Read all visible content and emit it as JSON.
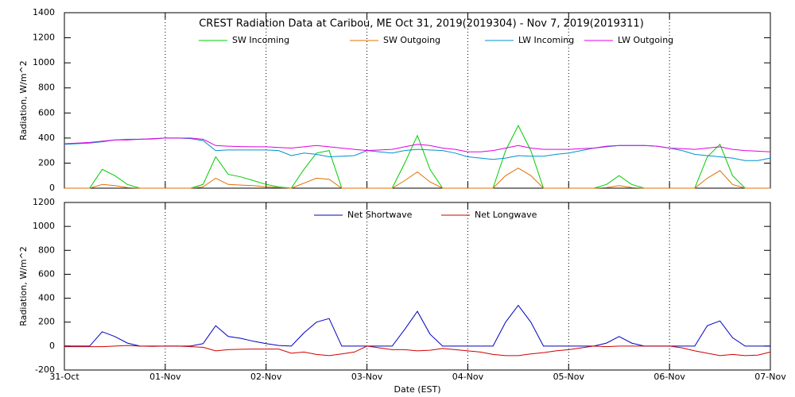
{
  "chart_data": [
    {
      "type": "line",
      "title": "CREST Radiation Data at Caribou, ME   Oct 31, 2019(2019304) - Nov  7, 2019(2019311)",
      "ylabel": "Radiation, W/m^2",
      "x": [
        0,
        0.125,
        0.25,
        0.375,
        0.5,
        0.625,
        0.75,
        0.875,
        1,
        1.125,
        1.25,
        1.375,
        1.5,
        1.625,
        1.75,
        1.875,
        2,
        2.125,
        2.25,
        2.375,
        2.5,
        2.625,
        2.75,
        2.875,
        3,
        3.125,
        3.25,
        3.375,
        3.5,
        3.625,
        3.75,
        3.875,
        4,
        4.125,
        4.25,
        4.375,
        4.5,
        4.625,
        4.75,
        4.875,
        5,
        5.125,
        5.25,
        5.375,
        5.5,
        5.625,
        5.75,
        5.875,
        6,
        6.125,
        6.25,
        6.375,
        6.5,
        6.625,
        6.75,
        6.875,
        7
      ],
      "xlim": [
        0,
        7
      ],
      "xticks": [
        0,
        1,
        2,
        3,
        4,
        5,
        6,
        7
      ],
      "ylim": [
        0,
        1400
      ],
      "yticks": [
        0,
        200,
        400,
        600,
        800,
        1000,
        1200,
        1400
      ],
      "grid": "x",
      "series": [
        {
          "name": "SW Incoming",
          "color": "#00cc00",
          "values": [
            0,
            0,
            0,
            150,
            100,
            30,
            0,
            0,
            0,
            0,
            0,
            30,
            250,
            110,
            90,
            60,
            30,
            10,
            0,
            150,
            280,
            300,
            0,
            0,
            0,
            0,
            0,
            200,
            420,
            150,
            0,
            0,
            0,
            0,
            0,
            300,
            500,
            300,
            0,
            0,
            0,
            0,
            0,
            30,
            100,
            30,
            0,
            0,
            0,
            0,
            0,
            250,
            350,
            100,
            0,
            0,
            0
          ]
        },
        {
          "name": "SW Outgoing",
          "color": "#e07000",
          "values": [
            0,
            0,
            0,
            30,
            20,
            5,
            0,
            0,
            0,
            0,
            0,
            10,
            80,
            30,
            25,
            20,
            10,
            5,
            0,
            40,
            80,
            70,
            0,
            0,
            0,
            0,
            0,
            60,
            130,
            50,
            0,
            0,
            0,
            0,
            0,
            100,
            160,
            100,
            0,
            0,
            0,
            0,
            0,
            5,
            20,
            5,
            0,
            0,
            0,
            0,
            0,
            80,
            140,
            30,
            0,
            0,
            0
          ]
        },
        {
          "name": "LW Incoming",
          "color": "#0090d0",
          "values": [
            350,
            355,
            360,
            370,
            385,
            390,
            390,
            392,
            400,
            400,
            395,
            380,
            300,
            305,
            305,
            305,
            305,
            300,
            260,
            280,
            270,
            250,
            255,
            260,
            300,
            290,
            280,
            300,
            310,
            305,
            300,
            280,
            250,
            240,
            230,
            240,
            260,
            255,
            255,
            270,
            280,
            300,
            320,
            330,
            340,
            340,
            340,
            335,
            320,
            300,
            270,
            260,
            250,
            240,
            220,
            220,
            240
          ]
        },
        {
          "name": "LW Outgoing",
          "color": "#e000e0",
          "values": [
            355,
            360,
            365,
            375,
            385,
            385,
            390,
            395,
            400,
            400,
            400,
            390,
            340,
            335,
            332,
            330,
            330,
            325,
            320,
            330,
            340,
            330,
            320,
            310,
            300,
            305,
            310,
            330,
            350,
            340,
            320,
            310,
            290,
            290,
            300,
            320,
            340,
            320,
            310,
            310,
            310,
            315,
            320,
            335,
            340,
            340,
            340,
            335,
            320,
            315,
            310,
            320,
            330,
            310,
            300,
            295,
            290
          ]
        }
      ]
    },
    {
      "type": "line",
      "ylabel": "Radiation, W/m^2",
      "xlabel": "Date (EST)",
      "x": [
        0,
        0.125,
        0.25,
        0.375,
        0.5,
        0.625,
        0.75,
        0.875,
        1,
        1.125,
        1.25,
        1.375,
        1.5,
        1.625,
        1.75,
        1.875,
        2,
        2.125,
        2.25,
        2.375,
        2.5,
        2.625,
        2.75,
        2.875,
        3,
        3.125,
        3.25,
        3.375,
        3.5,
        3.625,
        3.75,
        3.875,
        4,
        4.125,
        4.25,
        4.375,
        4.5,
        4.625,
        4.75,
        4.875,
        5,
        5.125,
        5.25,
        5.375,
        5.5,
        5.625,
        5.75,
        5.875,
        6,
        6.125,
        6.25,
        6.375,
        6.5,
        6.625,
        6.75,
        6.875,
        7
      ],
      "xlim": [
        0,
        7
      ],
      "xticks": [
        {
          "value": 0,
          "label": "31-Oct"
        },
        {
          "value": 1,
          "label": "01-Nov"
        },
        {
          "value": 2,
          "label": "02-Nov"
        },
        {
          "value": 3,
          "label": "03-Nov"
        },
        {
          "value": 4,
          "label": "04-Nov"
        },
        {
          "value": 5,
          "label": "05-Nov"
        },
        {
          "value": 6,
          "label": "06-Nov"
        },
        {
          "value": 7,
          "label": "07-Nov"
        }
      ],
      "ylim": [
        -200,
        1200
      ],
      "yticks": [
        -200,
        0,
        200,
        400,
        600,
        800,
        1000,
        1200
      ],
      "grid": "x",
      "series": [
        {
          "name": "Net Shortwave",
          "color": "#0000c0",
          "values": [
            0,
            0,
            0,
            120,
            80,
            25,
            0,
            0,
            0,
            0,
            0,
            20,
            170,
            80,
            65,
            40,
            20,
            5,
            0,
            110,
            200,
            230,
            0,
            0,
            0,
            0,
            0,
            140,
            290,
            100,
            0,
            0,
            0,
            0,
            0,
            200,
            340,
            200,
            0,
            0,
            0,
            0,
            0,
            25,
            80,
            25,
            0,
            0,
            0,
            0,
            0,
            170,
            210,
            70,
            0,
            0,
            0
          ]
        },
        {
          "name": "Net Longwave",
          "color": "#d00000",
          "values": [
            -5,
            -5,
            -5,
            -5,
            0,
            5,
            0,
            -3,
            0,
            0,
            -5,
            -10,
            -40,
            -30,
            -27,
            -25,
            -25,
            -25,
            -60,
            -50,
            -70,
            -80,
            -65,
            -50,
            0,
            -15,
            -30,
            -30,
            -40,
            -35,
            -20,
            -30,
            -40,
            -50,
            -70,
            -80,
            -80,
            -65,
            -55,
            -40,
            -30,
            -15,
            0,
            -5,
            0,
            0,
            0,
            0,
            0,
            -15,
            -40,
            -60,
            -80,
            -70,
            -80,
            -75,
            -50
          ]
        }
      ]
    }
  ]
}
